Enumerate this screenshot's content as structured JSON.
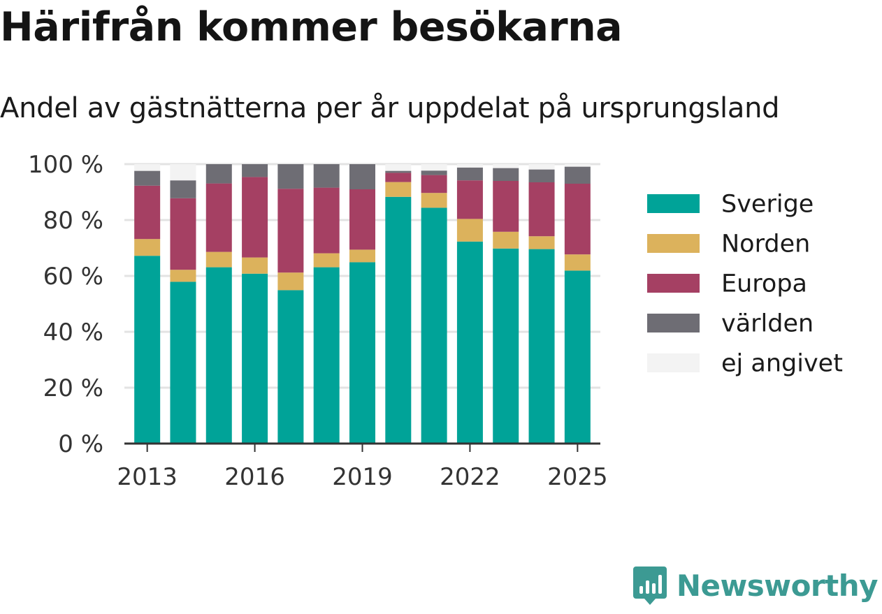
{
  "title": "Härifrån kommer besökarna",
  "subtitle": "Andel av gästnätterna per år uppdelat på ursprungsland",
  "brand": {
    "name": "Newsworthy",
    "color": "#3c9a93"
  },
  "chart_data": {
    "type": "bar",
    "stacked": true,
    "categories": [
      "2013",
      "2014",
      "2015",
      "2016",
      "2017",
      "2018",
      "2019",
      "2020",
      "2021",
      "2022",
      "2023",
      "2024",
      "2025"
    ],
    "x_tick_labels": [
      "2013",
      "2016",
      "2019",
      "2022",
      "2025"
    ],
    "y_tick_labels": [
      "0 %",
      "20 %",
      "40 %",
      "60 %",
      "80 %",
      "100 %"
    ],
    "ylim": [
      0,
      100
    ],
    "grid": true,
    "legend_position": "right",
    "series": [
      {
        "name": "Sverige",
        "color": "#00a398",
        "values": [
          67.2,
          57.9,
          63.1,
          60.8,
          54.9,
          63.1,
          64.9,
          88.3,
          84.4,
          72.3,
          69.8,
          69.6,
          61.9
        ]
      },
      {
        "name": "Norden",
        "color": "#dcb25c",
        "values": [
          6.0,
          4.3,
          5.5,
          5.8,
          6.3,
          5.0,
          4.5,
          5.3,
          5.3,
          8.1,
          6.0,
          4.6,
          5.8
        ]
      },
      {
        "name": "Europa",
        "color": "#a54063",
        "values": [
          19.1,
          25.6,
          24.5,
          28.8,
          30.0,
          23.5,
          21.6,
          3.3,
          6.4,
          13.8,
          18.2,
          19.3,
          25.3
        ]
      },
      {
        "name": "världen",
        "color": "#6e6d74",
        "values": [
          5.3,
          6.4,
          6.9,
          4.6,
          8.8,
          8.4,
          9.0,
          0.7,
          1.6,
          4.6,
          4.6,
          4.6,
          6.1
        ]
      },
      {
        "name": "ej angivet",
        "color": "#f3f3f3",
        "values": [
          2.4,
          5.8,
          0.0,
          0.0,
          0.0,
          0.0,
          0.0,
          2.4,
          2.3,
          1.2,
          1.4,
          1.9,
          0.9
        ]
      }
    ]
  }
}
